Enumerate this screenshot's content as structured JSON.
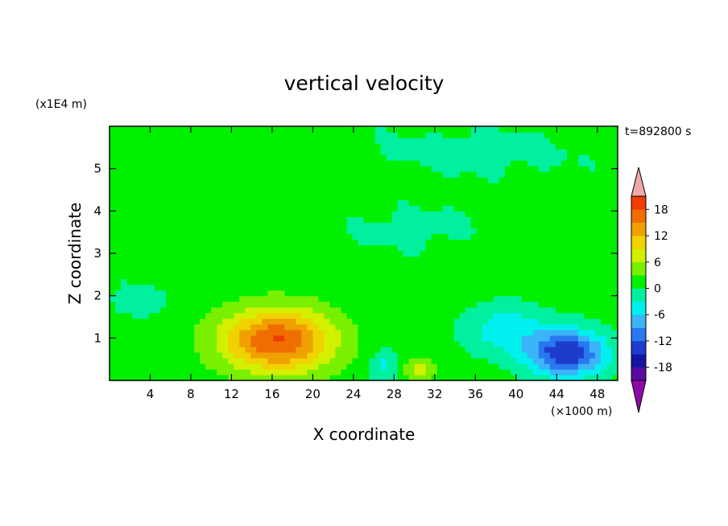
{
  "chart_data": {
    "type": "heatmap",
    "title": "vertical velocity",
    "xlabel": "X coordinate",
    "ylabel": "Z coordinate",
    "x_unit": "(×1000 m)",
    "y_unit": "(x1E4 m)",
    "time_label": "t=892800 s",
    "xlim": [
      0,
      50
    ],
    "ylim": [
      0,
      6
    ],
    "x_ticks": [
      4,
      8,
      12,
      16,
      20,
      24,
      28,
      32,
      36,
      40,
      44,
      48
    ],
    "y_ticks": [
      1,
      2,
      3,
      4,
      5
    ],
    "colorbar": {
      "levels": [
        -21,
        -18,
        -15,
        -12,
        -9,
        -6,
        -3,
        0,
        3,
        6,
        9,
        12,
        15,
        18,
        21
      ],
      "labels": [
        "18",
        "12",
        "6",
        "0",
        "-6",
        "-12",
        "-18"
      ],
      "label_values": [
        18,
        12,
        6,
        0,
        -6,
        -12,
        -18
      ],
      "under_color": "#8c0aa8",
      "over_color": "#f0a8a8",
      "colors": [
        "#5a0aa0",
        "#1414a0",
        "#1e3ccc",
        "#2878f0",
        "#3cb4f8",
        "#00f0f0",
        "#00f0a0",
        "#00f000",
        "#78f000",
        "#d2f000",
        "#f0d200",
        "#f0a000",
        "#f06e00",
        "#f03c00"
      ]
    },
    "features": [
      {
        "x": 16.5,
        "z": 0.95,
        "peak": 17,
        "sx": 5.5,
        "sz": 0.75
      },
      {
        "x": 45.0,
        "z": 0.65,
        "peak": -16,
        "sx": 3.8,
        "sz": 0.55
      },
      {
        "x": 39.0,
        "z": 1.2,
        "peak": -6,
        "sx": 4.0,
        "sz": 0.6
      },
      {
        "x": 30.5,
        "z": 0.25,
        "peak": 6,
        "sx": 1.6,
        "sz": 0.25
      },
      {
        "x": 27.0,
        "z": 0.35,
        "peak": -5,
        "sx": 1.5,
        "sz": 0.4
      },
      {
        "x": 3.0,
        "z": 1.9,
        "peak": -4,
        "sx": 2.5,
        "sz": 0.35
      },
      {
        "x": 36.0,
        "z": 5.4,
        "peak": -3,
        "sx": 10.0,
        "sz": 0.5
      },
      {
        "x": 30.0,
        "z": 3.6,
        "peak": -2.5,
        "sx": 6.0,
        "sz": 0.5
      }
    ]
  }
}
